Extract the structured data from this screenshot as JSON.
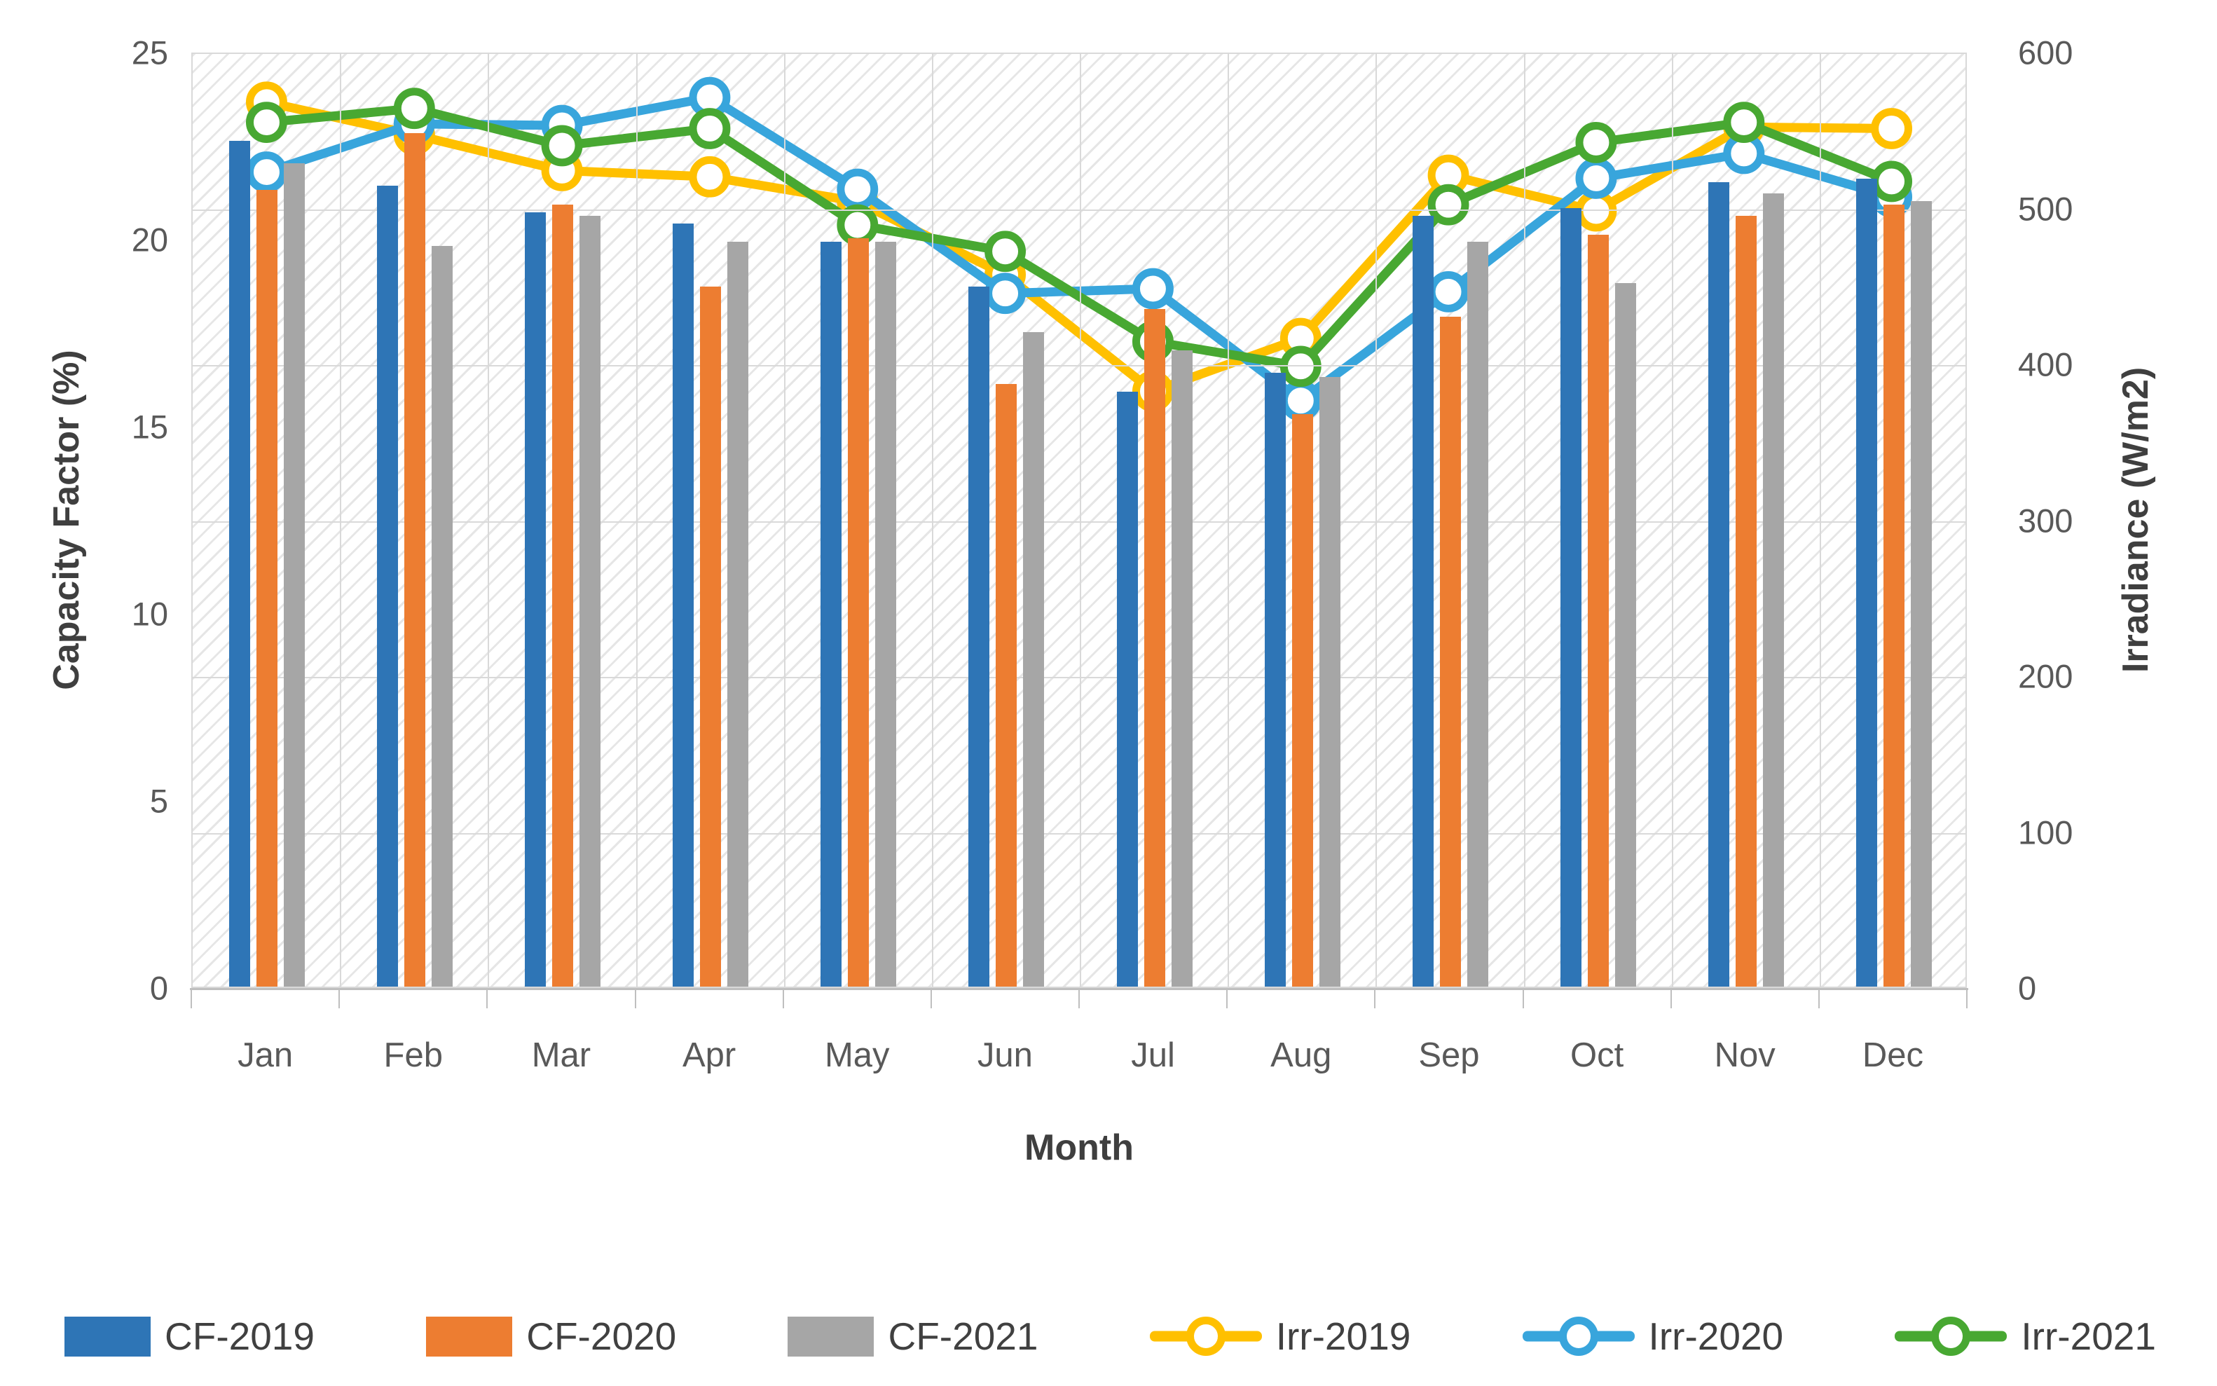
{
  "chart_data": {
    "type": "bar+line",
    "categories": [
      "Jan",
      "Feb",
      "Mar",
      "Apr",
      "May",
      "Jun",
      "Jul",
      "Aug",
      "Sep",
      "Oct",
      "Nov",
      "Dec"
    ],
    "bar_series": [
      {
        "name": "CF-2019",
        "color": "#2e75b6",
        "axis": "left",
        "values": [
          22.6,
          21.4,
          20.7,
          20.4,
          19.9,
          18.7,
          15.9,
          16.4,
          20.6,
          20.8,
          21.5,
          21.6
        ]
      },
      {
        "name": "CF-2020",
        "color": "#ed7d31",
        "axis": "left",
        "values": [
          21.3,
          22.8,
          20.9,
          18.7,
          20.0,
          16.1,
          18.1,
          15.3,
          17.9,
          20.1,
          20.6,
          20.9
        ]
      },
      {
        "name": "CF-2021",
        "color": "#a6a6a6",
        "axis": "left",
        "values": [
          22.0,
          19.8,
          20.6,
          19.9,
          19.9,
          17.5,
          17.0,
          16.3,
          19.9,
          18.8,
          21.2,
          21.0
        ]
      }
    ],
    "line_series": [
      {
        "name": "Irr-2019",
        "color": "#ffc000",
        "axis": "right",
        "values": [
          569,
          548,
          525,
          521,
          505,
          458,
          383,
          417,
          522,
          499,
          553,
          552
        ]
      },
      {
        "name": "Irr-2020",
        "color": "#38a5dc",
        "axis": "right",
        "values": [
          524,
          555,
          554,
          572,
          513,
          446,
          449,
          377,
          447,
          520,
          536,
          508
        ]
      },
      {
        "name": "Irr-2021",
        "color": "#48a832",
        "axis": "right",
        "values": [
          556,
          565,
          541,
          552,
          490,
          473,
          415,
          399,
          503,
          543,
          556,
          518
        ]
      }
    ],
    "left_axis": {
      "title": "Capacity Factor (%)",
      "min": 0,
      "max": 25,
      "step": 5,
      "tick_labels": [
        "0",
        "5",
        "10",
        "15",
        "20",
        "25"
      ]
    },
    "right_axis": {
      "title": "Irradiance (W/m2)",
      "min": 0,
      "max": 600,
      "step": 100,
      "tick_labels": [
        "0",
        "100",
        "200",
        "300",
        "400",
        "500",
        "600"
      ]
    },
    "xlabel": "Month",
    "legend_position": "bottom",
    "grid": true,
    "plot_background": "diagonal-hatch"
  },
  "style_colors": {
    "grid": "#d9d9d9",
    "axis_line": "#bfbfbf",
    "tick_text": "#595959",
    "title_text": "#3f3f3f"
  }
}
